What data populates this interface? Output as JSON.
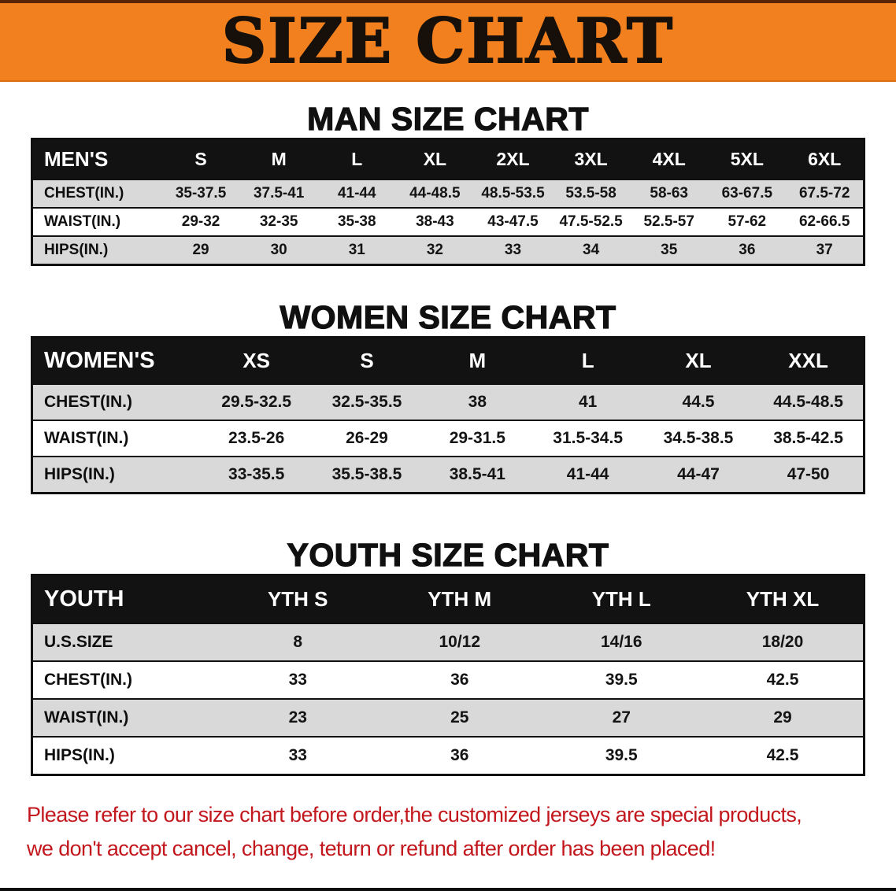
{
  "banner": {
    "title": "SIZE CHART"
  },
  "colors": {
    "banner_orange": "#F2801E",
    "table_header_black": "#121212",
    "row_stripe_gray": "#D9D9D9",
    "footer_red": "#C2171D"
  },
  "men": {
    "section_title": "MAN SIZE CHART",
    "header": [
      "MEN'S",
      "S",
      "M",
      "L",
      "XL",
      "2XL",
      "3XL",
      "4XL",
      "5XL",
      "6XL"
    ],
    "rows": [
      {
        "label": "CHEST(IN.)",
        "values": [
          "35-37.5",
          "37.5-41",
          "41-44",
          "44-48.5",
          "48.5-53.5",
          "53.5-58",
          "58-63",
          "63-67.5",
          "67.5-72"
        ]
      },
      {
        "label": "WAIST(IN.)",
        "values": [
          "29-32",
          "32-35",
          "35-38",
          "38-43",
          "43-47.5",
          "47.5-52.5",
          "52.5-57",
          "57-62",
          "62-66.5"
        ]
      },
      {
        "label": "HIPS(IN.)",
        "values": [
          "29",
          "30",
          "31",
          "32",
          "33",
          "34",
          "35",
          "36",
          "37"
        ]
      }
    ]
  },
  "women": {
    "section_title": "WOMEN SIZE CHART",
    "header": [
      "WOMEN'S",
      "XS",
      "S",
      "M",
      "L",
      "XL",
      "XXL"
    ],
    "rows": [
      {
        "label": "CHEST(IN.)",
        "values": [
          "29.5-32.5",
          "32.5-35.5",
          "38",
          "41",
          "44.5",
          "44.5-48.5"
        ]
      },
      {
        "label": "WAIST(IN.)",
        "values": [
          "23.5-26",
          "26-29",
          "29-31.5",
          "31.5-34.5",
          "34.5-38.5",
          "38.5-42.5"
        ]
      },
      {
        "label": "HIPS(IN.)",
        "values": [
          "33-35.5",
          "35.5-38.5",
          "38.5-41",
          "41-44",
          "44-47",
          "47-50"
        ]
      }
    ]
  },
  "youth": {
    "section_title": "YOUTH SIZE CHART",
    "header": [
      "YOUTH",
      "YTH S",
      "YTH M",
      "YTH L",
      "YTH XL"
    ],
    "rows": [
      {
        "label": "U.S.SIZE",
        "values": [
          "8",
          "10/12",
          "14/16",
          "18/20"
        ]
      },
      {
        "label": "CHEST(IN.)",
        "values": [
          "33",
          "36",
          "39.5",
          "42.5"
        ]
      },
      {
        "label": "WAIST(IN.)",
        "values": [
          "23",
          "25",
          "27",
          "29"
        ]
      },
      {
        "label": "HIPS(IN.)",
        "values": [
          "33",
          "36",
          "39.5",
          "42.5"
        ]
      }
    ]
  },
  "footer": {
    "line1": "Please refer to our size chart before order,the customized jerseys are special products,",
    "line2": "we don't accept cancel, change, teturn or refund after order has been placed!"
  }
}
